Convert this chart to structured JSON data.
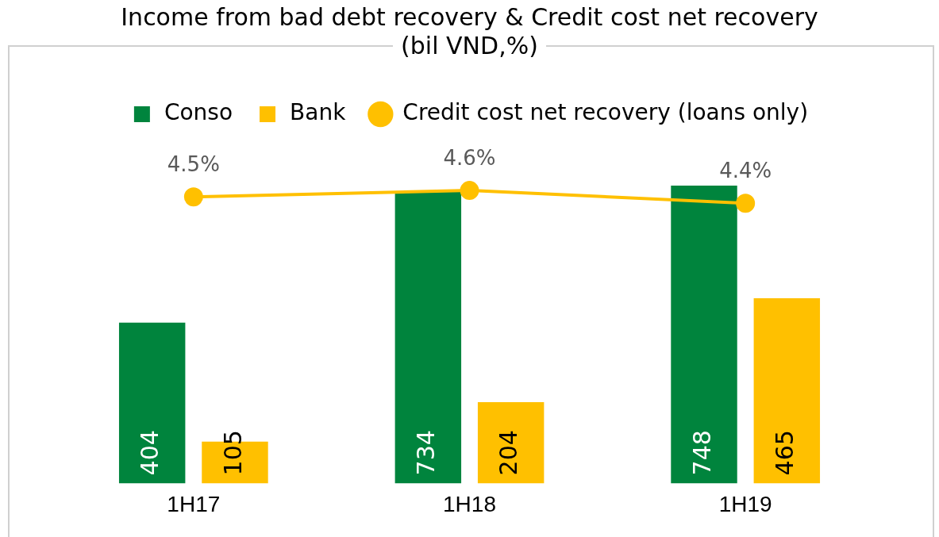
{
  "chart_data": {
    "type": "bar",
    "title": "Income from bad debt recovery & Credit cost net recovery",
    "subtitle": "(bil VND,%)",
    "categories": [
      "1H17",
      "1H18",
      "1H19"
    ],
    "series": [
      {
        "name": "Conso",
        "color": "#00843d",
        "values": [
          404,
          734,
          748
        ]
      },
      {
        "name": "Bank",
        "color": "#ffc000",
        "values": [
          105,
          204,
          465
        ]
      },
      {
        "name": "Credit cost net recovery (loans only)",
        "type": "line",
        "axis": "y2",
        "color": "#ffc000",
        "values": [
          4.5,
          4.6,
          4.4
        ],
        "value_labels": [
          "4.5%",
          "4.6%",
          "4.4%"
        ]
      }
    ],
    "data_labels": true,
    "tick_labels": "x",
    "grid": false,
    "legend": "top",
    "marker": "circle",
    "line_style": "solid"
  }
}
